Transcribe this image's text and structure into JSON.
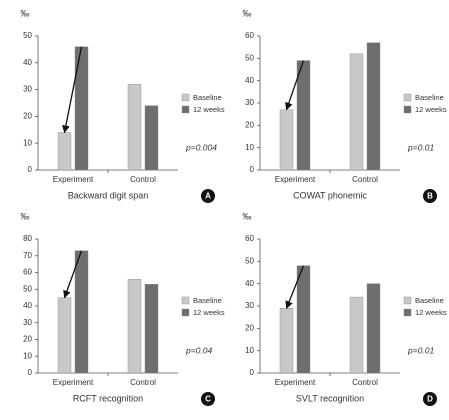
{
  "chart_data": [
    {
      "type": "bar",
      "panel": "A",
      "ylabel": "‰",
      "xlabel": "Backward digit span",
      "annotation": "p=0.004",
      "categories": [
        "Experiment",
        "Control"
      ],
      "series": [
        {
          "name": "Baseline",
          "color": "#c8c8c8",
          "values": [
            14,
            32
          ]
        },
        {
          "name": "12 weeks",
          "color": "#6e6e6e",
          "values": [
            46,
            24
          ]
        }
      ],
      "ylim": [
        0,
        50
      ],
      "yticks": [
        0,
        10,
        20,
        30,
        40,
        50
      ]
    },
    {
      "type": "bar",
      "panel": "B",
      "ylabel": "‰",
      "xlabel": "COWAT phonemic",
      "annotation": "p=0.01",
      "categories": [
        "Experiment",
        "Control"
      ],
      "series": [
        {
          "name": "Baseline",
          "color": "#c8c8c8",
          "values": [
            27,
            52
          ]
        },
        {
          "name": "12 weeks",
          "color": "#6e6e6e",
          "values": [
            49,
            57
          ]
        }
      ],
      "ylim": [
        0,
        60
      ],
      "yticks": [
        0,
        10,
        20,
        30,
        40,
        50,
        60
      ]
    },
    {
      "type": "bar",
      "panel": "C",
      "ylabel": "‰",
      "xlabel": "RCFT recognition",
      "annotation": "p=0.04",
      "categories": [
        "Experiment",
        "Control"
      ],
      "series": [
        {
          "name": "Baseline",
          "color": "#c8c8c8",
          "values": [
            45,
            56
          ]
        },
        {
          "name": "12 weeks",
          "color": "#6e6e6e",
          "values": [
            73,
            53
          ]
        }
      ],
      "ylim": [
        0,
        80
      ],
      "yticks": [
        0,
        10,
        20,
        30,
        40,
        50,
        60,
        70,
        80
      ]
    },
    {
      "type": "bar",
      "panel": "D",
      "ylabel": "‰",
      "xlabel": "SVLT recognition",
      "annotation": "p=0.01",
      "categories": [
        "Experiment",
        "Control"
      ],
      "series": [
        {
          "name": "Baseline",
          "color": "#c8c8c8",
          "values": [
            29,
            34
          ]
        },
        {
          "name": "12 weeks",
          "color": "#6e6e6e",
          "values": [
            48,
            40
          ]
        }
      ],
      "ylim": [
        0,
        60
      ],
      "yticks": [
        0,
        10,
        20,
        30,
        40,
        50,
        60
      ]
    }
  ]
}
